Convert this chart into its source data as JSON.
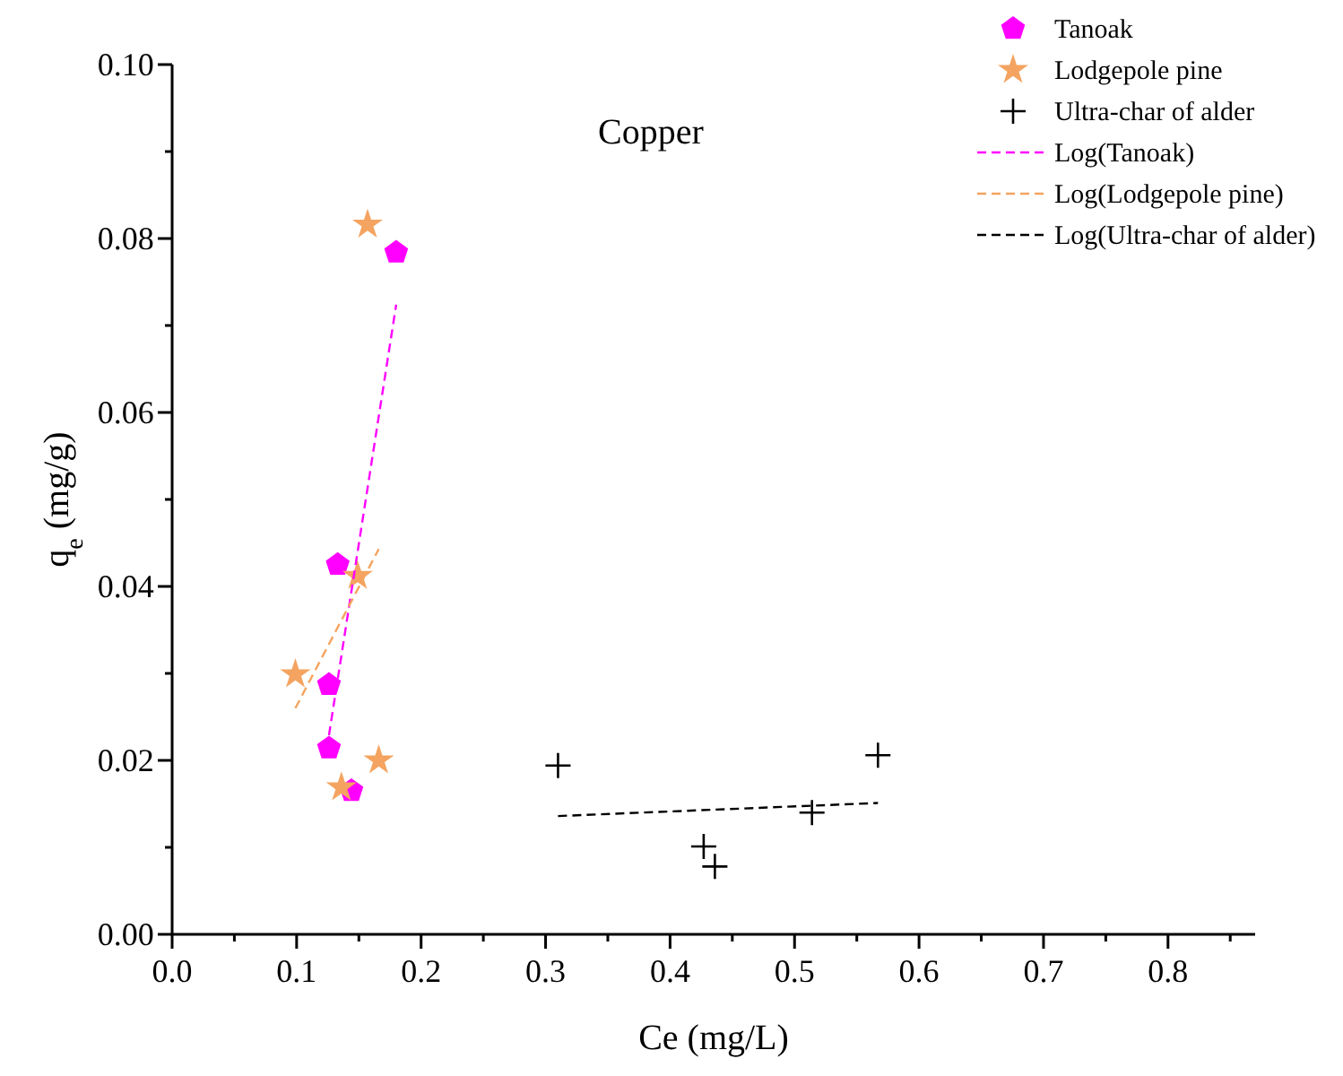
{
  "chart_data": {
    "type": "scatter",
    "title": "Copper",
    "xlabel": "Ce (mg/L)",
    "ylabel": "q$_{e}$ (mg/g)",
    "xlim": [
      0,
      0.87
    ],
    "ylim": [
      0,
      0.1
    ],
    "xticks": [
      {
        "value": 0,
        "label": "0.0"
      },
      {
        "value": 0.05,
        "label": null
      },
      {
        "value": 0.1,
        "label": "0.1"
      },
      {
        "value": 0.15,
        "label": null
      },
      {
        "value": 0.2,
        "label": "0.2"
      },
      {
        "value": 0.25,
        "label": null
      },
      {
        "value": 0.3,
        "label": "0.3"
      },
      {
        "value": 0.35,
        "label": null
      },
      {
        "value": 0.4,
        "label": "0.4"
      },
      {
        "value": 0.45,
        "label": null
      },
      {
        "value": 0.5,
        "label": "0.5"
      },
      {
        "value": 0.55,
        "label": null
      },
      {
        "value": 0.6,
        "label": "0.6"
      },
      {
        "value": 0.65,
        "label": null
      },
      {
        "value": 0.7,
        "label": "0.7"
      },
      {
        "value": 0.75,
        "label": null
      },
      {
        "value": 0.8,
        "label": "0.8"
      },
      {
        "value": 0.85,
        "label": null
      }
    ],
    "yticks": [
      {
        "value": 0,
        "label": "0.00"
      },
      {
        "value": 0.01,
        "label": null
      },
      {
        "value": 0.02,
        "label": "0.02"
      },
      {
        "value": 0.03,
        "label": null
      },
      {
        "value": 0.04,
        "label": "0.04"
      },
      {
        "value": 0.05,
        "label": null
      },
      {
        "value": 0.06,
        "label": "0.06"
      },
      {
        "value": 0.07,
        "label": null
      },
      {
        "value": 0.08,
        "label": "0.08"
      },
      {
        "value": 0.09,
        "label": null
      },
      {
        "value": 0.1,
        "label": "0.10"
      }
    ],
    "grid": false,
    "legend": "top right",
    "series": [
      {
        "name": "Tanoak",
        "color": "#ff00ff",
        "x": [
          0.18,
          0.133,
          0.126,
          0.126,
          0.144
        ],
        "values": [
          0.0784,
          0.0425,
          0.0287,
          0.0214,
          0.0165
        ]
      },
      {
        "name": "Lodgepole pine",
        "marker": "star",
        "color": "#f4a460",
        "x": [
          0.157,
          0.149,
          0.099,
          0.166,
          0.136
        ],
        "values": [
          0.0816,
          0.0412,
          0.0299,
          0.02,
          0.0169
        ]
      },
      {
        "name": "Ultra-char of alder",
        "marker": "cross",
        "color": "#000000",
        "x": [
          0.31,
          0.567,
          0.514,
          0.427,
          0.436
        ],
        "values": [
          0.0194,
          0.0206,
          0.014,
          0.0101,
          0.0078
        ]
      },
      {
        "name": "Log(Tanoak)",
        "type": "line",
        "line_style": "dashed",
        "marker": "none",
        "color": "#ff00ff",
        "x": [
          0.126,
          0.18
        ],
        "values": [
          0.0229,
          0.0724
        ]
      },
      {
        "name": "Log(Lodgepole pine)",
        "type": "line",
        "line_style": "dashed",
        "marker": "none",
        "color": "#f4a460",
        "x": [
          0.099,
          0.166
        ],
        "values": [
          0.026,
          0.0443
        ]
      },
      {
        "name": "Log(Ultra-char of alder)",
        "type": "line",
        "line_style": "dashed",
        "marker": "none",
        "color": "#000000",
        "x": [
          0.31,
          0.567
        ],
        "values": [
          0.0136,
          0.0151
        ]
      }
    ]
  }
}
